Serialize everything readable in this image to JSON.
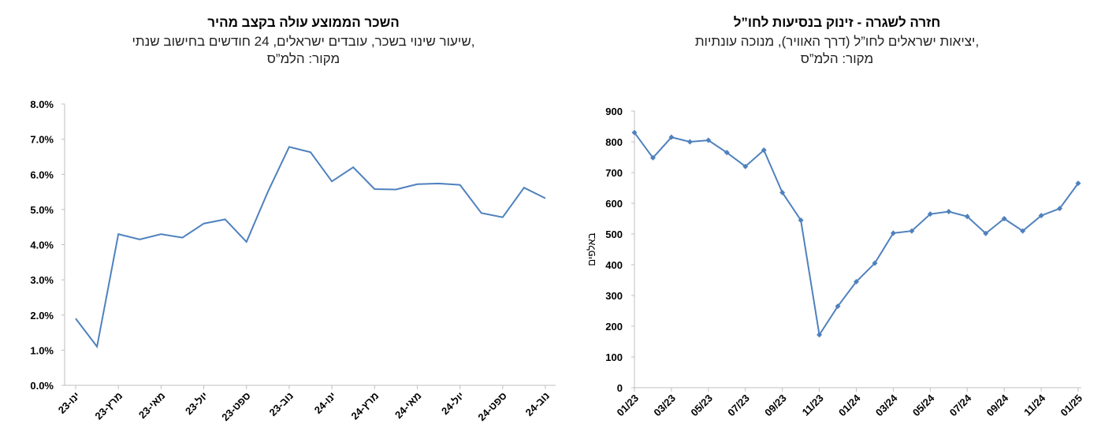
{
  "chart_data": [
    {
      "type": "line",
      "title": "השכר הממוצע עולה בקצב מהיר",
      "subtitle": [
        "שיעור שינוי בשכר, עובדים ישראלים, 24 חודשים בחישוב שנתי,",
        "מקור: הלמ”ס"
      ],
      "categories": [
        "ינו-23",
        null,
        "מרץ-23",
        null,
        "מאי-23",
        null,
        "יול-23",
        null,
        "ספט-23",
        null,
        "נוב-23",
        null,
        "ינו-24",
        null,
        "מרץ-24",
        null,
        "מאי-24",
        null,
        "יול-24",
        null,
        "ספט-24",
        null,
        "נוב-24"
      ],
      "series": [
        {
          "name": "שכר",
          "color": "#4f81bd",
          "values": [
            1.9,
            1.1,
            4.3,
            4.15,
            4.3,
            4.2,
            4.6,
            4.72,
            4.08,
            5.5,
            6.78,
            6.63,
            5.8,
            6.2,
            5.58,
            5.57,
            5.72,
            5.74,
            5.7,
            4.9,
            4.78,
            5.62,
            5.32
          ]
        }
      ],
      "ylim": [
        0,
        8
      ],
      "yticks": [
        {
          "value": 0,
          "label": "0.0%"
        },
        {
          "value": 1,
          "label": "1.0%"
        },
        {
          "value": 2,
          "label": "2.0%"
        },
        {
          "value": 3,
          "label": "3.0%"
        },
        {
          "value": 4,
          "label": "4.0%"
        },
        {
          "value": 5,
          "label": "5.0%"
        },
        {
          "value": 6,
          "label": "6.0%"
        },
        {
          "value": 7,
          "label": "7.0%"
        },
        {
          "value": 8,
          "label": "8.0%"
        }
      ],
      "grid": false,
      "marker": "none"
    },
    {
      "type": "line",
      "title": "חזרה לשגרה - זינוק בנסיעות לחו”ל",
      "subtitle": [
        "יציאות ישראלים לחו”ל (דרך האוויר), מנוכה עונתיות,",
        "מקור: הלמ”ס"
      ],
      "y_label": "באלפים",
      "categories": [
        "01/23",
        null,
        "03/23",
        null,
        "05/23",
        null,
        "07/23",
        null,
        "09/23",
        null,
        "11/23",
        null,
        "01/24",
        null,
        "03/24",
        null,
        "05/24",
        null,
        "07/24",
        null,
        "09/24",
        null,
        "11/24",
        null,
        "01/25"
      ],
      "series": [
        {
          "name": "יציאות",
          "color": "#4f81bd",
          "values": [
            830,
            748,
            815,
            800,
            805,
            765,
            720,
            773,
            635,
            545,
            172,
            265,
            345,
            405,
            503,
            510,
            565,
            573,
            557,
            502,
            550,
            510,
            560,
            583,
            665
          ]
        }
      ],
      "ylim": [
        0,
        900
      ],
      "yticks": [
        0,
        100,
        200,
        300,
        400,
        500,
        600,
        700,
        800,
        900
      ],
      "grid": false,
      "marker": "diamond"
    }
  ]
}
